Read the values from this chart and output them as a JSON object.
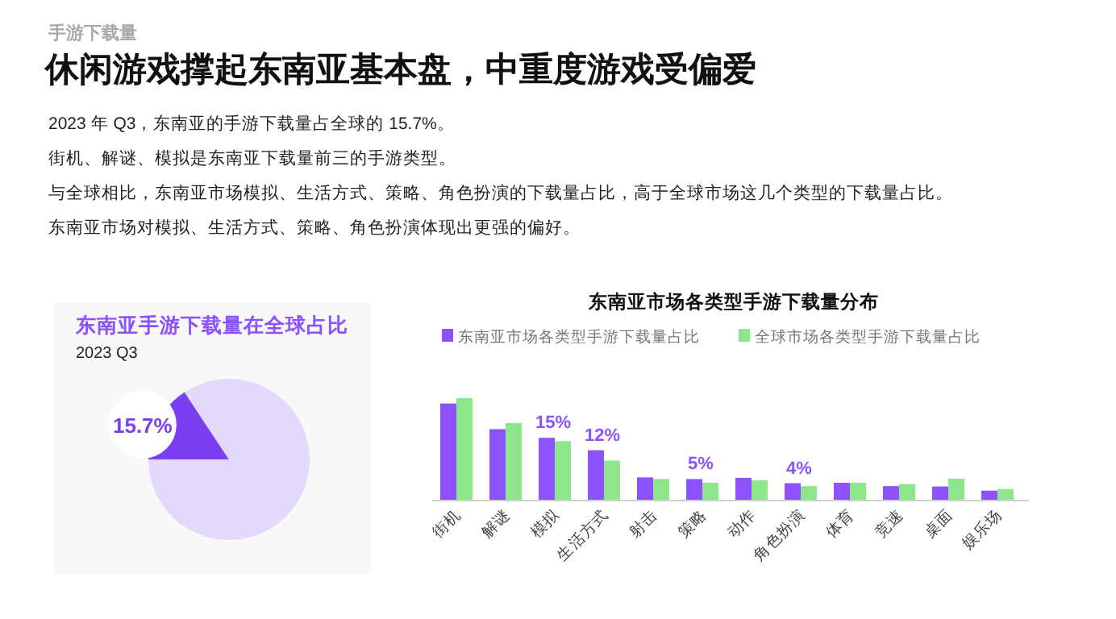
{
  "chart_data": [
    {
      "type": "other",
      "subtitle": "手游下载量",
      "title": "休闲游戏撑起东南亚基本盘，中重度游戏受偏爱",
      "annotations": [
        "2023 年 Q3，东南亚的手游下载量占全球的 15.7%。",
        "街机、解谜、模拟是东南亚下载量前三的手游类型。",
        "与全球相比，东南亚市场模拟、生活方式、策略、角色扮演的下载量占比，高于全球市场这几个类型的下载量占比。",
        "东南亚市场对模拟、生活方式、策略、角色扮演体现出更强的偏好。"
      ]
    },
    {
      "type": "pie",
      "title": "东南亚手游下载量在全球占比",
      "subtitle": "2023 Q3",
      "categories": [
        null,
        null
      ],
      "values": [
        15.7,
        84.3
      ],
      "colors": [
        "#7b3ff2",
        "#e4d9fb"
      ],
      "value_labels": [
        "15.7%",
        null
      ]
    },
    {
      "type": "bar",
      "title": "东南亚市场各类型手游下载量分布",
      "ylim": [
        0,
        25
      ],
      "tick_labels": "x",
      "legend": "top",
      "categories": [
        "街机",
        "解谜",
        "模拟",
        "生活方式",
        "射击",
        "策略",
        "动作",
        "角色扮演",
        "体育",
        "竞速",
        "桌面",
        "娱乐场"
      ],
      "series": [
        {
          "name": "东南亚市场各类型手游下载量占比",
          "color": "#8c52ff",
          "values": [
            23.3,
            17.1,
            15,
            12,
            5.4,
            5,
            5.3,
            4,
            4.1,
            3.3,
            3.2,
            2.2
          ],
          "value_labels": [
            null,
            null,
            "15%",
            "12%",
            null,
            "5%",
            null,
            "4%",
            null,
            null,
            null,
            null
          ]
        },
        {
          "name": "全球市场各类型手游下载量占比",
          "color": "#8ee68a",
          "values": [
            24.6,
            18.6,
            14.2,
            9.5,
            5.0,
            4.1,
            4.7,
            3.3,
            4.1,
            3.8,
            5.1,
            2.6
          ]
        }
      ]
    }
  ]
}
